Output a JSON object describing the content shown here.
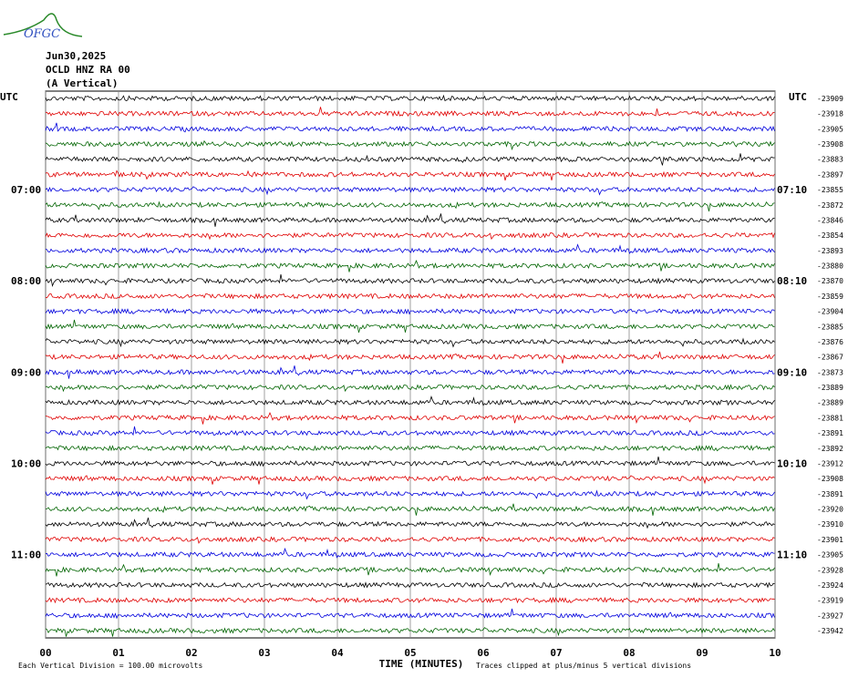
{
  "header": {
    "logo": "OFGC",
    "date": "Jun30,2025",
    "station": "OCLD HNZ RA 00",
    "component": "(A Vertical)",
    "left_zone": "UTC",
    "right_zone": "UTC"
  },
  "left_labels": [
    {
      "row": 6,
      "label": "07:00"
    },
    {
      "row": 12,
      "label": "08:00"
    },
    {
      "row": 18,
      "label": "09:00"
    },
    {
      "row": 24,
      "label": "10:00"
    },
    {
      "row": 30,
      "label": "11:00"
    }
  ],
  "right_labels": [
    {
      "row": 6,
      "label": "07:10"
    },
    {
      "row": 12,
      "label": "08:10"
    },
    {
      "row": 18,
      "label": "09:10"
    },
    {
      "row": 24,
      "label": "10:10"
    },
    {
      "row": 30,
      "label": "11:10"
    }
  ],
  "trace_offsets": [
    "-23909",
    "-23918",
    "-23905",
    "-23908",
    "-23883",
    "-23897",
    "-23855",
    "-23872",
    "-23846",
    "-23854",
    "-23893",
    "-23880",
    "-23870",
    "-23859",
    "-23904",
    "-23885",
    "-23876",
    "-23867",
    "-23873",
    "-23889",
    "-23889",
    "-23881",
    "-23891",
    "-23892",
    "-23912",
    "-23908",
    "-23891",
    "-23920",
    "-23910",
    "-23901",
    "-23905",
    "-23928",
    "-23924",
    "-23919",
    "-23927",
    "-23942"
  ],
  "trace_colors": [
    "#000000",
    "#e00000",
    "#0000dd",
    "#006400"
  ],
  "x_ticks": [
    "00",
    "01",
    "02",
    "03",
    "04",
    "05",
    "06",
    "07",
    "08",
    "09",
    "10"
  ],
  "x_axis_label": "TIME (MINUTES)",
  "footer": {
    "scale": "Each Vertical Division =  100.00 microvolts",
    "clip": "Traces clipped at plus/minus 5 vertical divisions"
  }
}
